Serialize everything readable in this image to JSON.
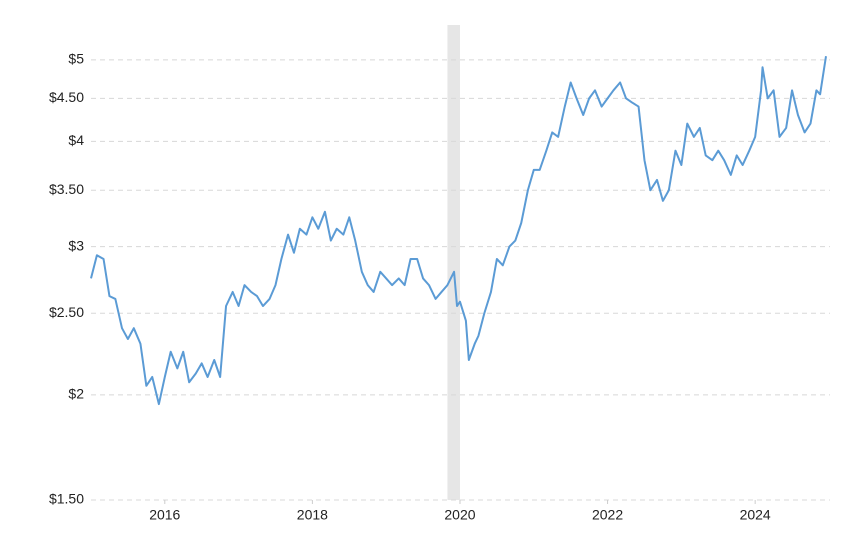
{
  "chart_data": {
    "type": "line",
    "x": [
      2015.0,
      2015.08,
      2015.17,
      2015.25,
      2015.33,
      2015.42,
      2015.5,
      2015.58,
      2015.67,
      2015.75,
      2015.83,
      2015.92,
      2016.0,
      2016.08,
      2016.17,
      2016.25,
      2016.33,
      2016.42,
      2016.5,
      2016.58,
      2016.67,
      2016.75,
      2016.83,
      2016.92,
      2017.0,
      2017.08,
      2017.17,
      2017.25,
      2017.33,
      2017.42,
      2017.5,
      2017.58,
      2017.67,
      2017.75,
      2017.83,
      2017.92,
      2018.0,
      2018.08,
      2018.17,
      2018.25,
      2018.33,
      2018.42,
      2018.5,
      2018.58,
      2018.67,
      2018.75,
      2018.83,
      2018.92,
      2019.0,
      2019.08,
      2019.17,
      2019.25,
      2019.33,
      2019.42,
      2019.5,
      2019.58,
      2019.67,
      2019.75,
      2019.83,
      2019.92,
      2019.96,
      2020.0,
      2020.08,
      2020.12,
      2020.2,
      2020.25,
      2020.33,
      2020.42,
      2020.5,
      2020.58,
      2020.67,
      2020.75,
      2020.83,
      2020.92,
      2021.0,
      2021.08,
      2021.17,
      2021.25,
      2021.33,
      2021.42,
      2021.5,
      2021.58,
      2021.67,
      2021.75,
      2021.83,
      2021.92,
      2022.0,
      2022.08,
      2022.17,
      2022.25,
      2022.33,
      2022.42,
      2022.5,
      2022.58,
      2022.67,
      2022.75,
      2022.83,
      2022.92,
      2023.0,
      2023.08,
      2023.17,
      2023.25,
      2023.33,
      2023.42,
      2023.5,
      2023.58,
      2023.67,
      2023.75,
      2023.83,
      2023.92,
      2024.0,
      2024.08,
      2024.1,
      2024.17,
      2024.25,
      2024.33,
      2024.42,
      2024.5,
      2024.58,
      2024.67,
      2024.75,
      2024.83,
      2024.88,
      2024.96
    ],
    "values": [
      2.75,
      2.93,
      2.9,
      2.62,
      2.6,
      2.4,
      2.33,
      2.4,
      2.3,
      2.05,
      2.1,
      1.95,
      2.1,
      2.25,
      2.15,
      2.25,
      2.07,
      2.12,
      2.18,
      2.1,
      2.2,
      2.1,
      2.55,
      2.65,
      2.55,
      2.7,
      2.65,
      2.62,
      2.55,
      2.6,
      2.7,
      2.9,
      3.1,
      2.95,
      3.15,
      3.1,
      3.25,
      3.15,
      3.3,
      3.05,
      3.15,
      3.1,
      3.25,
      3.05,
      2.8,
      2.7,
      2.65,
      2.8,
      2.75,
      2.7,
      2.75,
      2.7,
      2.9,
      2.9,
      2.75,
      2.7,
      2.6,
      2.65,
      2.7,
      2.8,
      2.55,
      2.58,
      2.45,
      2.2,
      2.3,
      2.35,
      2.5,
      2.65,
      2.9,
      2.85,
      3.0,
      3.05,
      3.2,
      3.5,
      3.7,
      3.7,
      3.9,
      4.1,
      4.05,
      4.4,
      4.7,
      4.5,
      4.3,
      4.5,
      4.6,
      4.4,
      4.5,
      4.6,
      4.7,
      4.5,
      4.45,
      4.4,
      3.8,
      3.5,
      3.6,
      3.4,
      3.5,
      3.9,
      3.75,
      4.2,
      4.05,
      4.15,
      3.85,
      3.8,
      3.9,
      3.8,
      3.65,
      3.85,
      3.75,
      3.9,
      4.05,
      4.6,
      4.9,
      4.5,
      4.6,
      4.05,
      4.15,
      4.6,
      4.3,
      4.1,
      4.2,
      4.6,
      4.55,
      5.05
    ],
    "color": "#5b9bd5",
    "xlim": [
      2015.0,
      2024.96
    ],
    "xticks": [
      2016,
      2018,
      2020,
      2022,
      2024
    ],
    "ylim": [
      1.5,
      5.5
    ],
    "log_y": true,
    "yticks": [
      {
        "value": 1.5,
        "label": "$1.50"
      },
      {
        "value": 2,
        "label": "$2"
      },
      {
        "value": 2.5,
        "label": "$2.50"
      },
      {
        "value": 3,
        "label": "$3"
      },
      {
        "value": 3.5,
        "label": "$3.50"
      },
      {
        "value": 4,
        "label": "$4"
      },
      {
        "value": 4.5,
        "label": "$4.50"
      },
      {
        "value": 5,
        "label": "$5"
      }
    ],
    "grid": true,
    "shaded_region": [
      2019.83,
      2020.0
    ],
    "shade_color": "#e6e6e6"
  }
}
